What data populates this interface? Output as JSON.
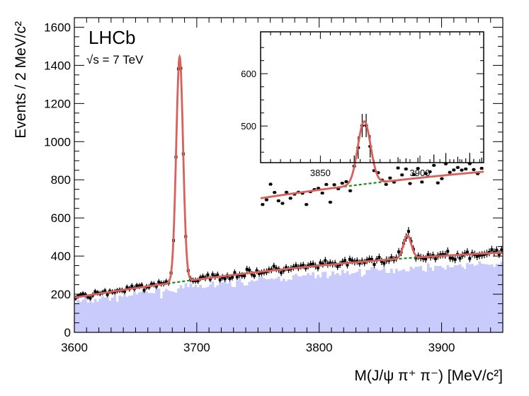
{
  "chart_data": {
    "type": "bar+scatter+line",
    "title": "",
    "xlabel": "M(J/ψ π⁺ π⁻) [MeV/c²]",
    "ylabel": "Events / 2 MeV/c²",
    "annotation_experiment": "LHCb",
    "annotation_energy": "√s = 7 TeV",
    "xlim": [
      3600,
      3950
    ],
    "ylim": [
      0,
      1650
    ],
    "xticks": [
      "3600",
      "3700",
      "3800",
      "3900"
    ],
    "yticks": [
      "0",
      "200",
      "400",
      "600",
      "800",
      "1000",
      "1200",
      "1400",
      "1600"
    ],
    "bin_width": 2,
    "background_model": {
      "intercept": 182,
      "slope": 1.06,
      "curvature": -0.0011,
      "x0": 3600
    },
    "signal_psi2s": {
      "mean": 3686,
      "sigma": 2.8,
      "amplitude": 1180
    },
    "signal_x3872": {
      "mean": 3872,
      "sigma": 3.2,
      "amplitude": 120
    },
    "sideband_fraction": 0.86,
    "colors": {
      "fit": "#d9605b",
      "background_fit": "#1a8a1a",
      "histogram": "#c8cbfb",
      "points": "#000000"
    },
    "inset": {
      "xlim": [
        3820,
        3932
      ],
      "ylim": [
        430,
        680
      ],
      "xticks": [
        "3850",
        "3900"
      ],
      "yticks": [
        "500",
        "600"
      ]
    }
  }
}
